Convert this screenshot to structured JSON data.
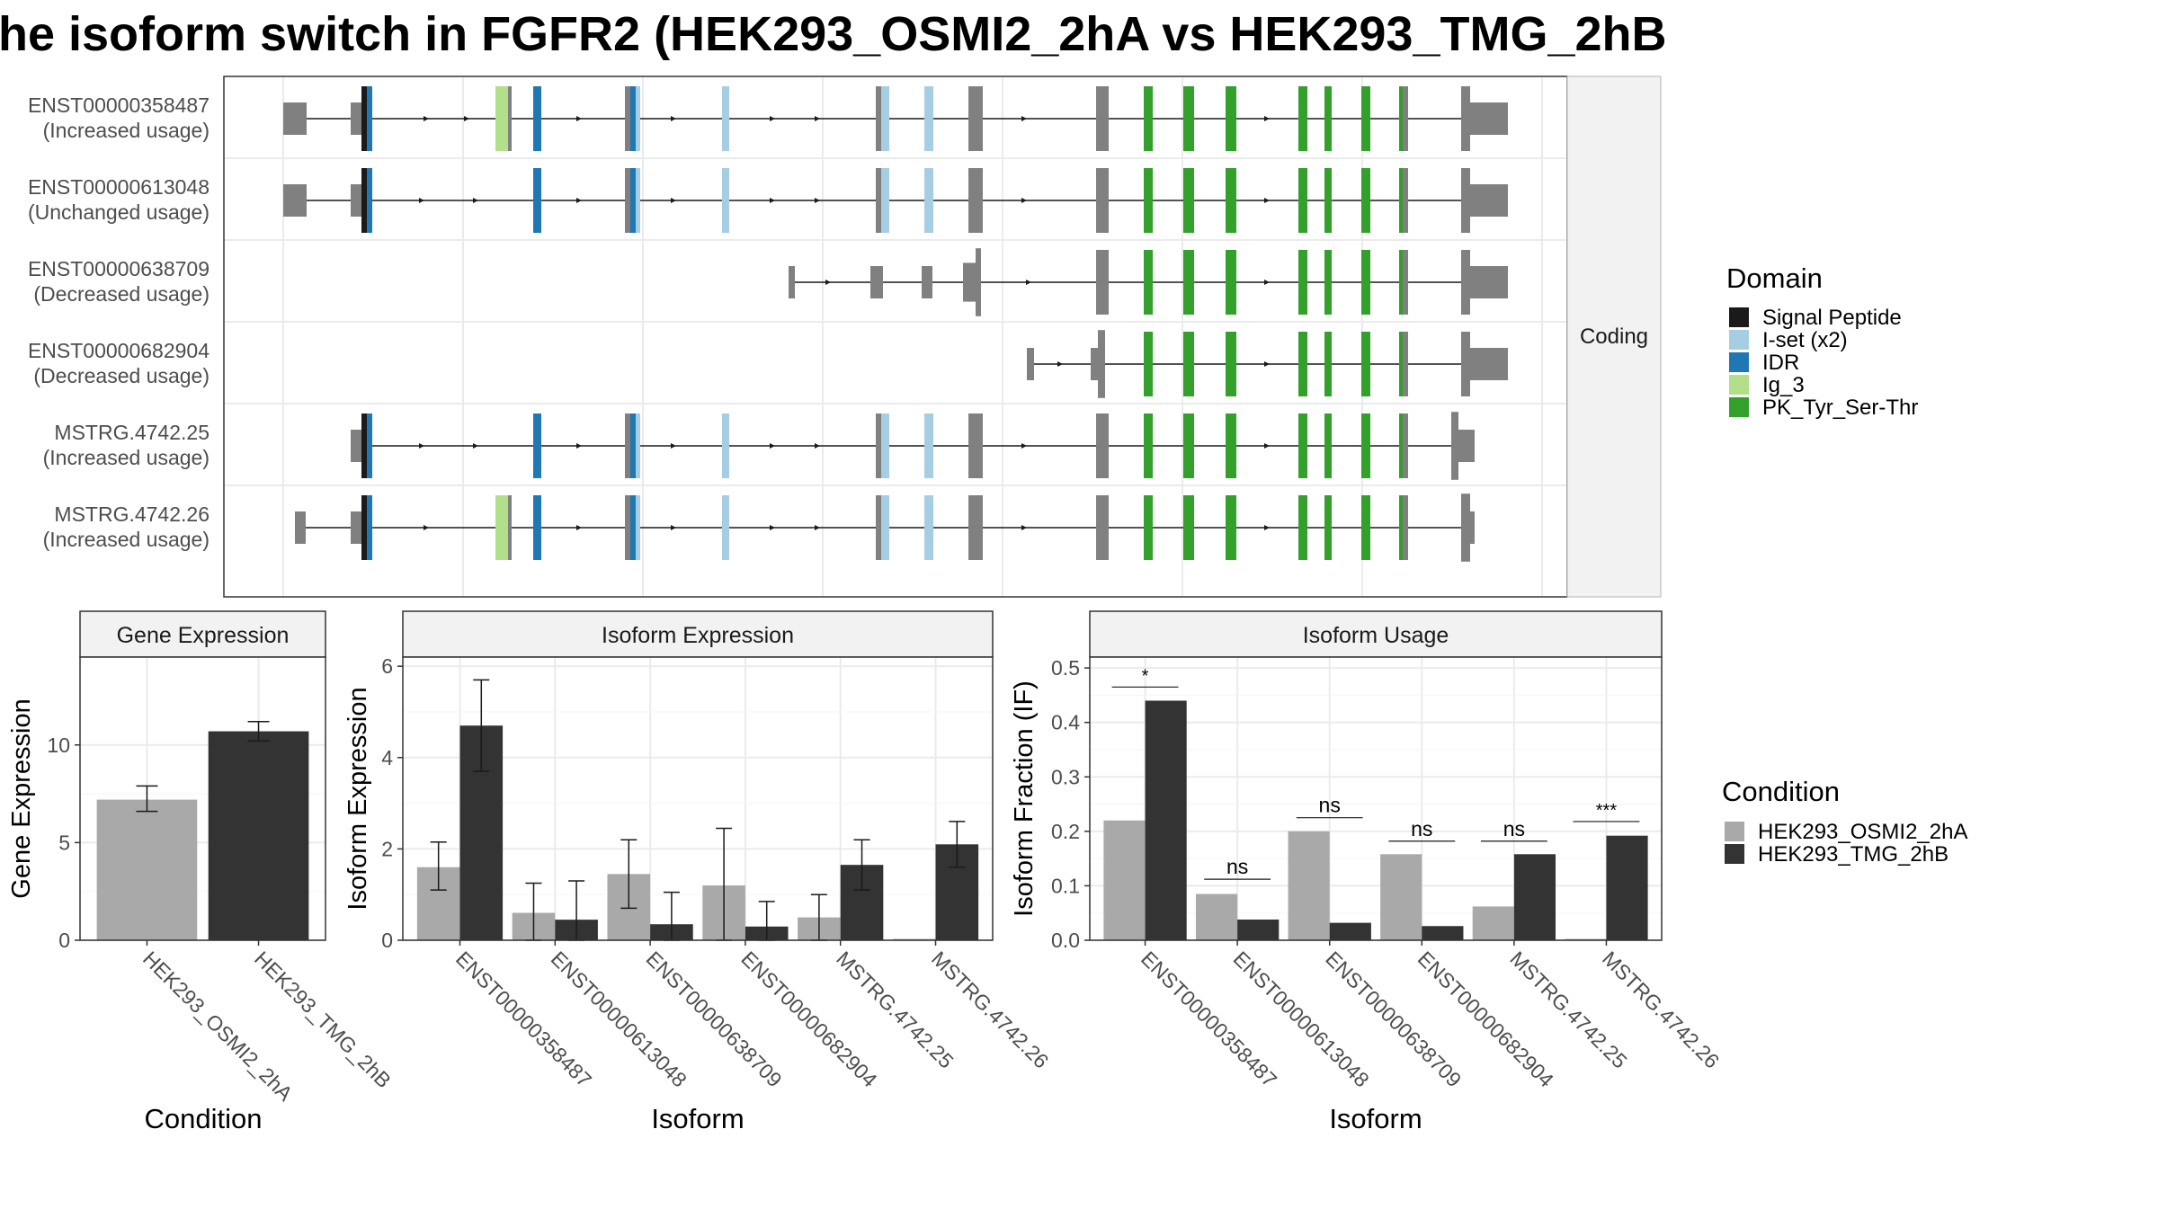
{
  "title": "he isoform switch in FGFR2 (HEK293_OSMI2_2hA vs HEK293_TMG_2hB",
  "colors": {
    "cond_a": "#a9a9a9",
    "cond_b": "#333333",
    "exon": "#808080",
    "strip": "#f2f2f2",
    "grid": "#ebebeb",
    "border": "#333333"
  },
  "structure_panel": {
    "facet_label": "Coding",
    "isoforms": [
      {
        "id": "ENST00000358487",
        "note": "(Increased usage)"
      },
      {
        "id": "ENST00000613048",
        "note": "(Unchanged usage)"
      },
      {
        "id": "ENST00000638709",
        "note": "(Decreased usage)"
      },
      {
        "id": "ENST00000682904",
        "note": "(Decreased usage)"
      },
      {
        "id": "MSTRG.4742.25",
        "note": "(Increased usage)"
      },
      {
        "id": "MSTRG.4742.26",
        "note": "(Increased usage)"
      }
    ]
  },
  "domain_legend": {
    "title": "Domain",
    "items": [
      {
        "label": "Signal Peptide",
        "color": "#1a1a1a"
      },
      {
        "label": "I-set (x2)",
        "color": "#a6cee3"
      },
      {
        "label": "IDR",
        "color": "#1f78b4"
      },
      {
        "label": "Ig_3",
        "color": "#b2df8a"
      },
      {
        "label": "PK_Tyr_Ser-Thr",
        "color": "#33a02c"
      }
    ]
  },
  "condition_legend": {
    "title": "Condition",
    "items": [
      {
        "label": "HEK293_OSMI2_2hA",
        "color": "#a9a9a9"
      },
      {
        "label": "HEK293_TMG_2hB",
        "color": "#333333"
      }
    ]
  },
  "chart_data": [
    {
      "type": "bar",
      "panel_title": "Gene Expression",
      "xlabel": "Condition",
      "ylabel": "Gene Expression",
      "ylim": [
        0,
        14.5
      ],
      "yticks": [
        0,
        5,
        10
      ],
      "categories": [
        "HEK293_OSMI2_2hA",
        "HEK293_TMG_2hB"
      ],
      "values": [
        7.2,
        10.7
      ],
      "errors": [
        [
          6.6,
          7.9
        ],
        [
          10.2,
          11.2
        ]
      ]
    },
    {
      "type": "bar",
      "panel_title": "Isoform Expression",
      "xlabel": "Isoform",
      "ylabel": "Isoform Expression",
      "ylim": [
        0,
        6.2
      ],
      "yticks": [
        0,
        2,
        4,
        6
      ],
      "categories": [
        "ENST00000358487",
        "ENST00000613048",
        "ENST00000638709",
        "ENST00000682904",
        "MSTRG.4742.25",
        "MSTRG.4742.26"
      ],
      "series": [
        {
          "name": "HEK293_OSMI2_2hA",
          "values": [
            1.6,
            0.6,
            1.45,
            1.2,
            0.5,
            0.0
          ],
          "errors": [
            [
              1.1,
              2.15
            ],
            [
              0.0,
              1.25
            ],
            [
              0.7,
              2.2
            ],
            [
              0.0,
              2.45
            ],
            [
              0.0,
              1.0
            ],
            [
              0.0,
              0.0
            ]
          ]
        },
        {
          "name": "HEK293_TMG_2hB",
          "values": [
            4.7,
            0.45,
            0.35,
            0.3,
            1.65,
            2.1
          ],
          "errors": [
            [
              3.7,
              5.7
            ],
            [
              0.0,
              1.3
            ],
            [
              0.0,
              1.05
            ],
            [
              0.0,
              0.85
            ],
            [
              1.1,
              2.2
            ],
            [
              1.6,
              2.6
            ]
          ]
        }
      ]
    },
    {
      "type": "bar",
      "panel_title": "Isoform Usage",
      "xlabel": "Isoform",
      "ylabel": "Isoform Fraction (IF)",
      "ylim": [
        0,
        0.52
      ],
      "yticks": [
        0.0,
        0.1,
        0.2,
        0.3,
        0.4,
        0.5
      ],
      "ytick_labels": [
        "0.0",
        "0.1",
        "0.2",
        "0.3",
        "0.4",
        "0.5"
      ],
      "categories": [
        "ENST00000358487",
        "ENST00000613048",
        "ENST00000638709",
        "ENST00000682904",
        "MSTRG.4742.25",
        "MSTRG.4742.26"
      ],
      "series": [
        {
          "name": "HEK293_OSMI2_2hA",
          "values": [
            0.22,
            0.085,
            0.2,
            0.158,
            0.062,
            0.0
          ]
        },
        {
          "name": "HEK293_TMG_2hB",
          "values": [
            0.44,
            0.038,
            0.032,
            0.026,
            0.158,
            0.192
          ]
        }
      ],
      "significance": [
        "*",
        "ns",
        "ns",
        "ns",
        "ns",
        "***"
      ],
      "significance_y": [
        0.465,
        0.112,
        0.225,
        0.182,
        0.182,
        0.218
      ]
    }
  ]
}
